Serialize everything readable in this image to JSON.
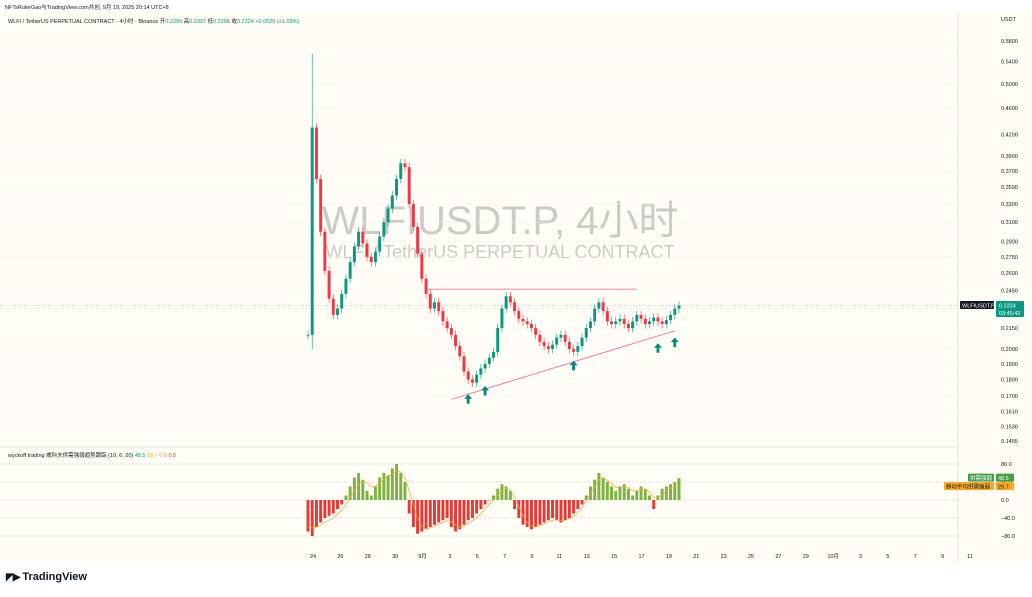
{
  "header": {
    "published": "NFTsRulerGao与TradingView.com共创, 9月 19, 2025 20:14 UTC+8",
    "symbol_line": "WLFI / TetherUS PERPETUAL CONTRACT · 4小时 · Binance",
    "open_label": "开",
    "open_value": "0.2299",
    "high_label": "高",
    "high_value": "0.2327",
    "low_label": "低",
    "low_value": "0.2296",
    "close_label": "收",
    "close_value": "0.2324",
    "change": "+0.0025 (+1.09%)"
  },
  "currency_label": "USDT",
  "watermark": {
    "line1": "WLFIUSDT.P, 4小时",
    "line2": "WLFI / TetherUS PERPETUAL CONTRACT"
  },
  "price_tag": {
    "symbol": "WLFIUSDT.P",
    "price": "0.2324",
    "countdown": "03:45:42"
  },
  "indicator": {
    "title": "wyckoff trading 威科夫供需强弱趋势跟踪 (10, 6, 20)",
    "values": [
      "48.5",
      "29.7",
      "0.0",
      "0.0"
    ],
    "legend_supply_demand": "供需强弱",
    "legend_supply_demand_value": "48.5",
    "legend_ma": "移动平均供需强弱",
    "legend_ma_value": "29.7"
  },
  "brand": "TradingView",
  "colors": {
    "up": "#089981",
    "down": "#f23645",
    "bar_up": "#7cb342",
    "bar_down": "#e53935",
    "trendline": "#f06292",
    "arrow": "#00897b",
    "background": "#fffdf5"
  },
  "chart_data": [
    {
      "type": "candlestick",
      "title": "WLFIUSDT.P, 4小时",
      "price_ticks": [
        0.58,
        0.54,
        0.5,
        0.46,
        0.42,
        0.39,
        0.37,
        0.35,
        0.33,
        0.31,
        0.29,
        0.275,
        0.26,
        0.245,
        0.23,
        0.215,
        0.2,
        0.19,
        0.18,
        0.17,
        0.161,
        0.153,
        0.1455
      ],
      "price_tick_labels": [
        "0.5800",
        "0.5400",
        "0.5000",
        "0.4600",
        "0.4200",
        "0.3900",
        "0.3700",
        "0.3500",
        "0.3300",
        "0.3100",
        "0.2900",
        "0.2750",
        "0.2600",
        "0.2450",
        "0.2300",
        "0.2150",
        "0.2000",
        "0.1900",
        "0.1800",
        "0.1700",
        "0.1610",
        "0.1530",
        "0.1455"
      ],
      "scale": "log",
      "x_labels": [
        "24",
        "26",
        "28",
        "30",
        "9月",
        "3",
        "5",
        "7",
        "9",
        "11",
        "13",
        "15",
        "17",
        "19",
        "21",
        "23",
        "25",
        "27",
        "29",
        "10月",
        "3",
        "5",
        "7",
        "9",
        "11"
      ],
      "last_price": 0.2324,
      "closes": [
        0.21,
        0.43,
        0.36,
        0.3,
        0.262,
        0.238,
        0.225,
        0.23,
        0.242,
        0.255,
        0.27,
        0.285,
        0.3,
        0.288,
        0.275,
        0.27,
        0.28,
        0.295,
        0.31,
        0.325,
        0.34,
        0.36,
        0.38,
        0.375,
        0.33,
        0.305,
        0.278,
        0.255,
        0.242,
        0.23,
        0.235,
        0.228,
        0.22,
        0.215,
        0.21,
        0.202,
        0.195,
        0.185,
        0.18,
        0.178,
        0.183,
        0.187,
        0.19,
        0.194,
        0.198,
        0.215,
        0.23,
        0.24,
        0.235,
        0.228,
        0.222,
        0.22,
        0.218,
        0.215,
        0.21,
        0.205,
        0.202,
        0.2,
        0.203,
        0.208,
        0.21,
        0.205,
        0.2,
        0.198,
        0.202,
        0.208,
        0.215,
        0.22,
        0.23,
        0.235,
        0.228,
        0.22,
        0.218,
        0.22,
        0.222,
        0.218,
        0.215,
        0.22,
        0.225,
        0.222,
        0.218,
        0.22,
        0.223,
        0.22,
        0.218,
        0.221,
        0.225,
        0.23,
        0.2324
      ],
      "support_line": {
        "start": 0.168,
        "end": 0.213
      },
      "resistance_line": 0.246
    },
    {
      "type": "bar",
      "title": "wyckoff trading 威科夫供需强弱趋势跟踪 (10, 6, 20)",
      "y_ticks": [
        80.0,
        40.0,
        0.0,
        -40.0,
        -80.0
      ],
      "y_tick_labels": [
        "80.0",
        "40.0",
        "0.0",
        "−40.0",
        "−80.0"
      ],
      "series": [
        {
          "name": "供需强弱",
          "values": [
            -70,
            -80,
            -60,
            -50,
            -40,
            -35,
            -30,
            -20,
            -10,
            10,
            30,
            50,
            60,
            45,
            20,
            10,
            30,
            50,
            60,
            55,
            70,
            80,
            60,
            40,
            -30,
            -60,
            -75,
            -70,
            -65,
            -60,
            -55,
            -50,
            -45,
            -40,
            -60,
            -70,
            -65,
            -55,
            -45,
            -40,
            -30,
            -20,
            -10,
            0,
            10,
            25,
            35,
            30,
            20,
            -20,
            -40,
            -55,
            -60,
            -65,
            -60,
            -55,
            -50,
            -45,
            -40,
            -45,
            -50,
            -45,
            -40,
            -30,
            -20,
            -10,
            10,
            30,
            45,
            60,
            50,
            40,
            30,
            20,
            30,
            35,
            25,
            10,
            20,
            30,
            25,
            10,
            -20,
            10,
            25,
            30,
            35,
            40,
            48.5
          ]
        },
        {
          "name": "移动平均供需强弱",
          "values": [
            -60,
            -62,
            -60,
            -56,
            -50,
            -45,
            -40,
            -32,
            -22,
            -10,
            5,
            20,
            35,
            42,
            38,
            30,
            30,
            38,
            46,
            52,
            58,
            65,
            62,
            50,
            20,
            -10,
            -40,
            -58,
            -64,
            -62,
            -58,
            -54,
            -50,
            -46,
            -48,
            -55,
            -60,
            -58,
            -52,
            -46,
            -40,
            -30,
            -20,
            -10,
            0,
            10,
            20,
            25,
            22,
            5,
            -15,
            -35,
            -50,
            -58,
            -60,
            -57,
            -53,
            -48,
            -45,
            -44,
            -46,
            -45,
            -42,
            -36,
            -28,
            -18,
            -2,
            15,
            30,
            45,
            48,
            44,
            36,
            28,
            28,
            30,
            28,
            20,
            20,
            24,
            24,
            18,
            5,
            5,
            12,
            20,
            26,
            28,
            29.7
          ]
        }
      ]
    }
  ]
}
